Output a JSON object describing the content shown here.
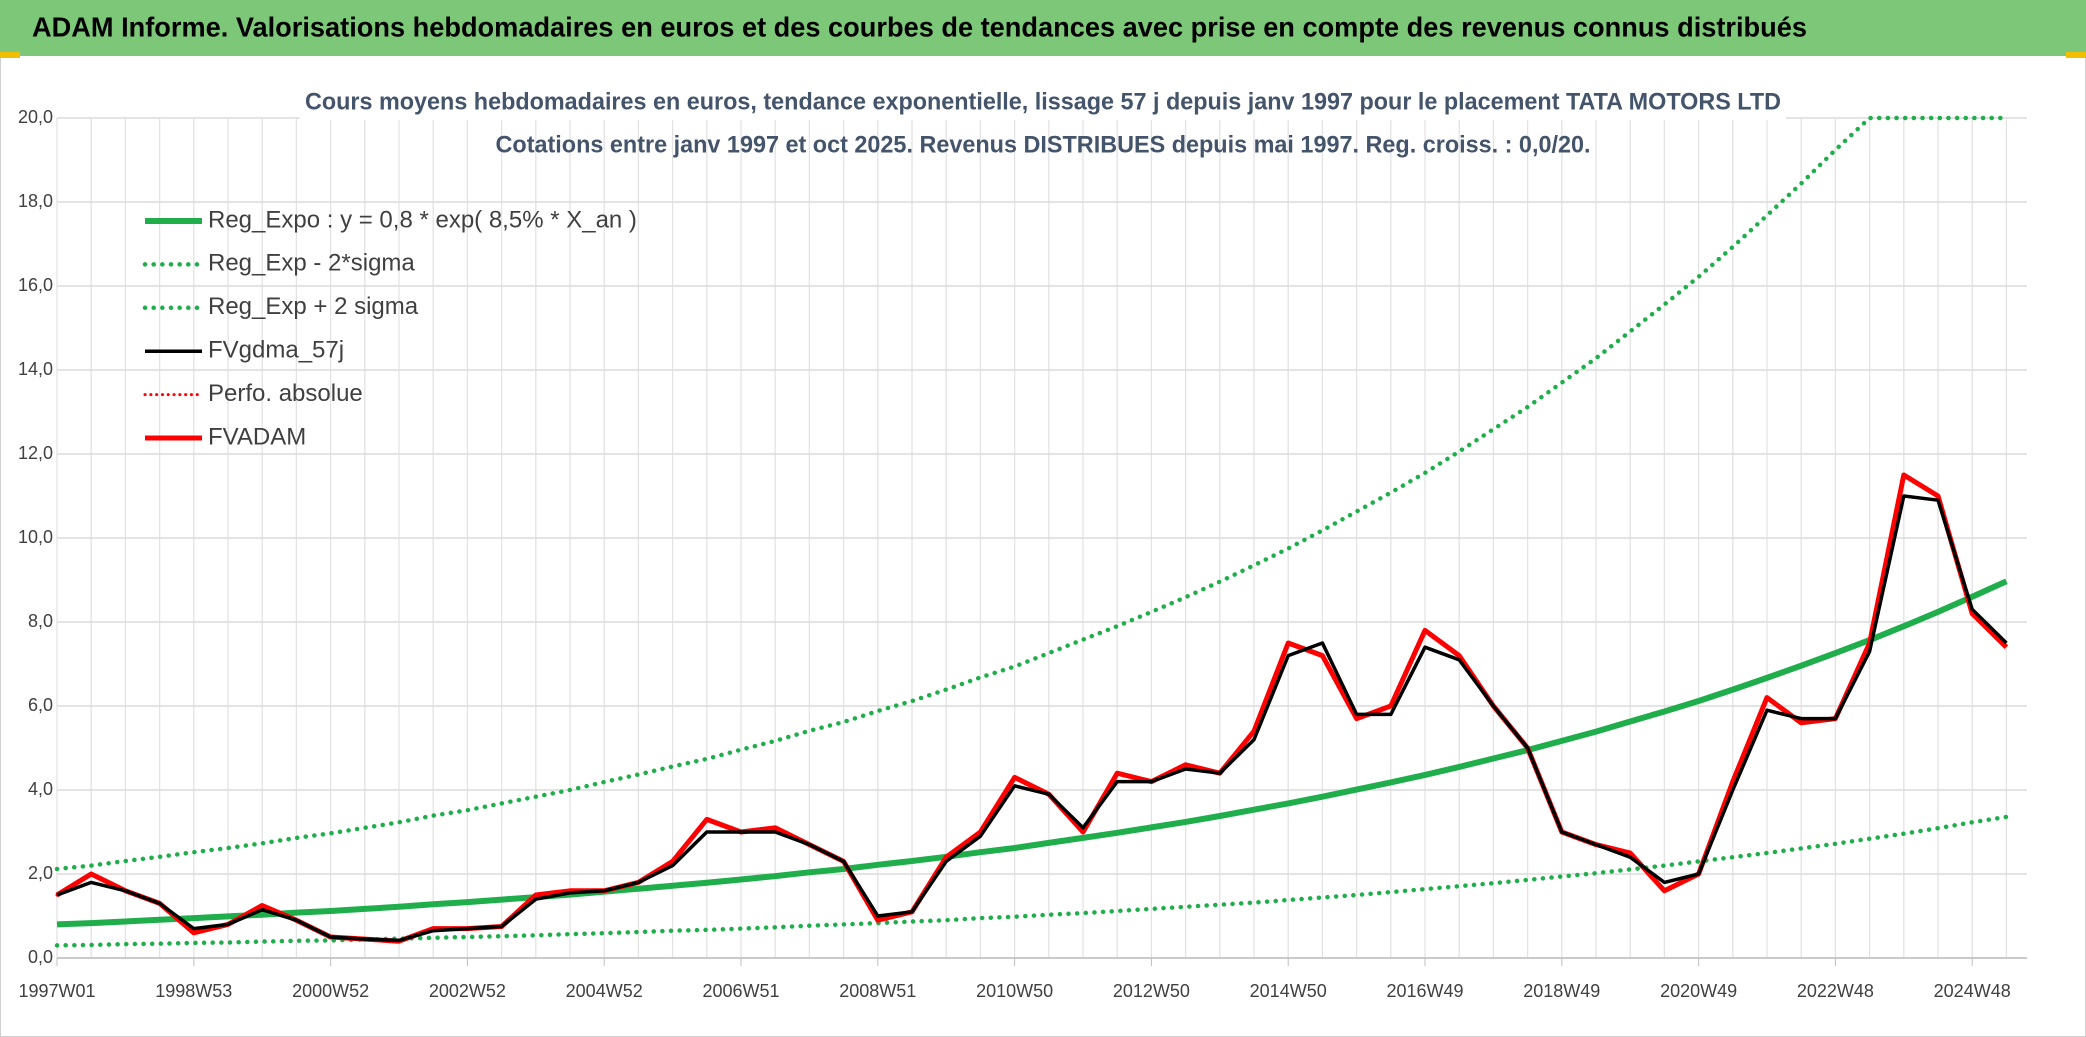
{
  "header": {
    "title": "ADAM Informe. Valorisations hebdomadaires en euros et des courbes de tendances avec prise en compte des revenus connus distribués"
  },
  "chart_data": {
    "type": "line",
    "title": "Cours moyens hebdomadaires en euros, tendance exponentielle, lissage 57 j depuis janv 1997 pour le placement TATA MOTORS LTD",
    "subtitle": "Cotations entre janv 1997 et oct 2025. Revenus DISTRIBUES depuis mai 1997. Reg. croiss. : 0,0/20.",
    "x": [
      "1997W01",
      null,
      null,
      null,
      "1998W53",
      null,
      null,
      null,
      "2000W52",
      null,
      null,
      null,
      "2002W52",
      null,
      null,
      null,
      "2004W52",
      null,
      null,
      null,
      "2006W51",
      null,
      null,
      null,
      "2008W51",
      null,
      null,
      null,
      "2010W50",
      null,
      null,
      null,
      "2012W50",
      null,
      null,
      null,
      "2014W50",
      null,
      null,
      null,
      "2016W49",
      null,
      null,
      null,
      "2018W49",
      null,
      null,
      null,
      "2020W49",
      null,
      null,
      null,
      "2022W48",
      null,
      null,
      null,
      "2024W48",
      null
    ],
    "ylim": [
      0,
      20
    ],
    "yticks": [
      {
        "value": 0,
        "label": "0,0"
      },
      {
        "value": 2,
        "label": "2,0"
      },
      {
        "value": 4,
        "label": "4,0"
      },
      {
        "value": 6,
        "label": "6,0"
      },
      {
        "value": 8,
        "label": "8,0"
      },
      {
        "value": 10,
        "label": "10,0"
      },
      {
        "value": 12,
        "label": "12,0"
      },
      {
        "value": 14,
        "label": "14,0"
      },
      {
        "value": 16,
        "label": "16,0"
      },
      {
        "value": 18,
        "label": "18,0"
      },
      {
        "value": 20,
        "label": "20,0"
      }
    ],
    "grid": true,
    "legend": "upper left",
    "series": [
      {
        "name": "Reg_Expo : y = 0,8 * exp( 8,5% *  X_an )",
        "color": "#1fae4b",
        "dotted": false,
        "width": 6,
        "values": [
          0.8,
          0.83,
          0.87,
          0.91,
          0.95,
          0.99,
          1.03,
          1.08,
          1.12,
          1.17,
          1.22,
          1.28,
          1.33,
          1.39,
          1.45,
          1.51,
          1.58,
          1.65,
          1.72,
          1.79,
          1.87,
          1.95,
          2.04,
          2.12,
          2.22,
          2.31,
          2.41,
          2.52,
          2.62,
          2.74,
          2.86,
          2.98,
          3.11,
          3.24,
          3.38,
          3.53,
          3.68,
          3.84,
          4.01,
          4.18,
          4.36,
          4.55,
          4.75,
          4.95,
          5.17,
          5.39,
          5.63,
          5.87,
          6.12,
          6.39,
          6.67,
          6.96,
          7.26,
          7.57,
          7.9,
          8.24,
          8.6,
          8.97
        ]
      },
      {
        "name": "Reg_Exp - 2*sigma",
        "color": "#1fae4b",
        "dotted": true,
        "width": 4.5,
        "values": [
          0.3,
          0.31,
          0.33,
          0.34,
          0.36,
          0.37,
          0.39,
          0.41,
          0.42,
          0.44,
          0.46,
          0.48,
          0.5,
          0.52,
          0.54,
          0.57,
          0.59,
          0.62,
          0.65,
          0.67,
          0.7,
          0.73,
          0.77,
          0.8,
          0.83,
          0.87,
          0.9,
          0.95,
          0.98,
          1.03,
          1.07,
          1.12,
          1.17,
          1.22,
          1.27,
          1.32,
          1.38,
          1.44,
          1.5,
          1.57,
          1.64,
          1.71,
          1.78,
          1.86,
          1.94,
          2.02,
          2.11,
          2.2,
          2.3,
          2.4,
          2.5,
          2.61,
          2.72,
          2.84,
          2.96,
          3.09,
          3.23,
          3.36
        ]
      },
      {
        "name": "Reg_Exp + 2 sigma",
        "color": "#1fae4b",
        "dotted": true,
        "width": 4.5,
        "values": [
          2.12,
          2.2,
          2.31,
          2.41,
          2.52,
          2.62,
          2.73,
          2.86,
          2.97,
          3.1,
          3.23,
          3.39,
          3.52,
          3.68,
          3.84,
          4.0,
          4.19,
          4.37,
          4.56,
          4.74,
          4.96,
          5.17,
          5.41,
          5.62,
          5.88,
          6.12,
          6.39,
          6.68,
          6.94,
          7.26,
          7.58,
          7.9,
          8.24,
          8.59,
          8.96,
          9.35,
          9.75,
          10.18,
          10.63,
          11.08,
          11.55,
          12.06,
          12.59,
          13.12,
          13.7,
          14.28,
          14.92,
          15.56,
          16.22,
          16.93,
          17.68,
          18.44,
          19.24,
          20,
          20,
          20,
          20,
          20
        ]
      },
      {
        "name": "FVgdma_57j",
        "color": "#000000",
        "dotted": false,
        "width": 3.5,
        "values": [
          1.5,
          1.8,
          1.6,
          1.3,
          0.7,
          0.8,
          1.15,
          0.9,
          0.5,
          0.45,
          0.42,
          0.65,
          0.7,
          0.75,
          1.4,
          1.55,
          1.6,
          1.8,
          2.2,
          3.0,
          3.0,
          3.0,
          2.7,
          2.3,
          1.0,
          1.1,
          2.3,
          2.9,
          4.1,
          3.9,
          3.1,
          4.2,
          4.2,
          4.5,
          4.4,
          5.2,
          7.2,
          7.5,
          5.8,
          5.8,
          7.4,
          7.1,
          6.0,
          5.0,
          3.0,
          2.7,
          2.4,
          1.8,
          2.0,
          4.0,
          5.9,
          5.7,
          5.7,
          7.3,
          11.0,
          10.9,
          8.3,
          7.5
        ]
      },
      {
        "name": "Perfo. absolue",
        "color": "#ff0000",
        "dotted": true,
        "width": 3,
        "values": [
          1.5,
          2.0,
          1.6,
          1.3,
          0.6,
          0.8,
          1.25,
          0.9,
          0.5,
          0.45,
          0.4,
          0.7,
          0.7,
          0.75,
          1.5,
          1.6,
          1.6,
          1.8,
          2.3,
          3.3,
          3.0,
          3.1,
          2.7,
          2.3,
          0.9,
          1.1,
          2.4,
          3.0,
          4.3,
          3.9,
          3.0,
          4.4,
          4.2,
          4.6,
          4.4,
          5.4,
          7.5,
          7.2,
          5.7,
          6.0,
          7.8,
          7.2,
          6.0,
          5.0,
          3.0,
          2.7,
          2.5,
          1.6,
          2.0,
          4.2,
          6.2,
          5.6,
          5.7,
          7.5,
          11.5,
          11.0,
          8.2,
          7.4
        ]
      },
      {
        "name": "FVADAM",
        "color": "#ff0000",
        "dotted": false,
        "width": 5,
        "values": [
          1.5,
          2.0,
          1.6,
          1.3,
          0.6,
          0.8,
          1.25,
          0.9,
          0.5,
          0.45,
          0.4,
          0.7,
          0.7,
          0.75,
          1.5,
          1.6,
          1.6,
          1.8,
          2.3,
          3.3,
          3.0,
          3.1,
          2.7,
          2.3,
          0.9,
          1.1,
          2.4,
          3.0,
          4.3,
          3.9,
          3.0,
          4.4,
          4.2,
          4.6,
          4.4,
          5.4,
          7.5,
          7.2,
          5.7,
          6.0,
          7.8,
          7.2,
          6.0,
          5.0,
          3.0,
          2.7,
          2.5,
          1.6,
          2.0,
          4.2,
          6.2,
          5.6,
          5.7,
          7.5,
          11.5,
          11.0,
          8.2,
          7.4
        ]
      }
    ],
    "draw_order": [
      0,
      1,
      2,
      5,
      4,
      3
    ]
  }
}
